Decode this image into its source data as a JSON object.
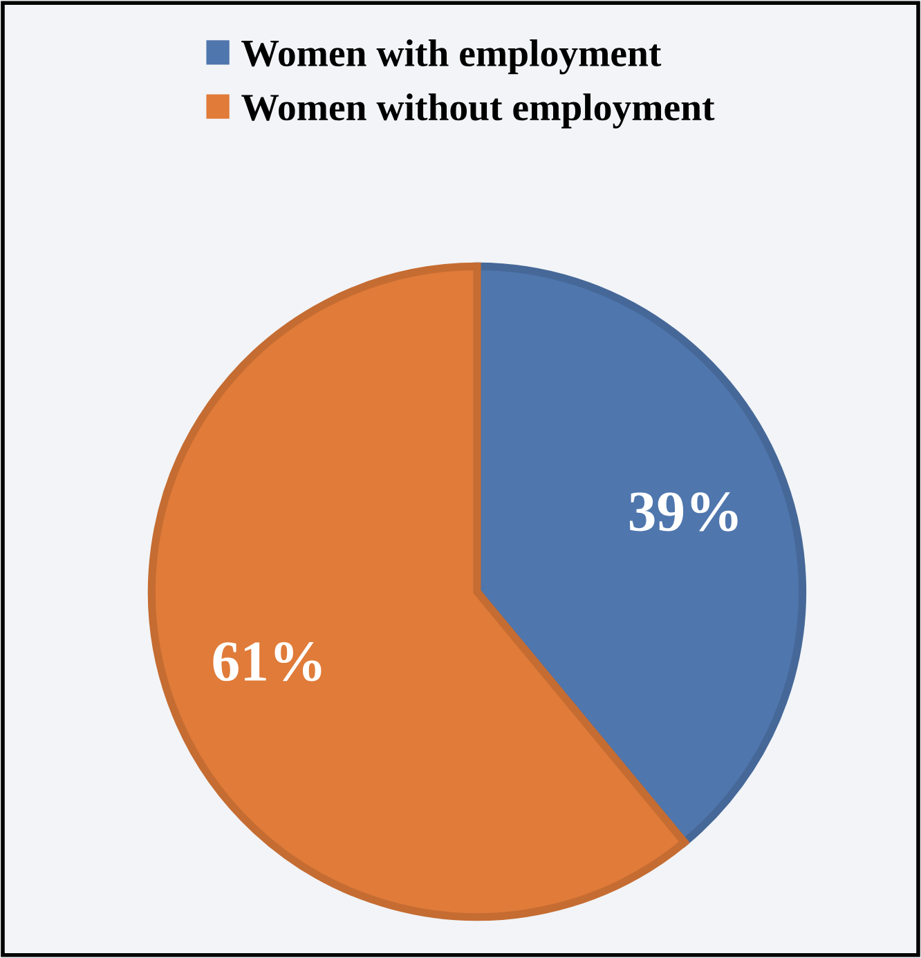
{
  "chart_data": {
    "type": "pie",
    "categories": [
      "Women with employment",
      "Women without employment"
    ],
    "values": [
      39,
      61
    ],
    "colors": [
      "#4f76ad",
      "#e07b39"
    ],
    "value_labels": [
      "39%",
      "61%"
    ],
    "legend": "top"
  }
}
